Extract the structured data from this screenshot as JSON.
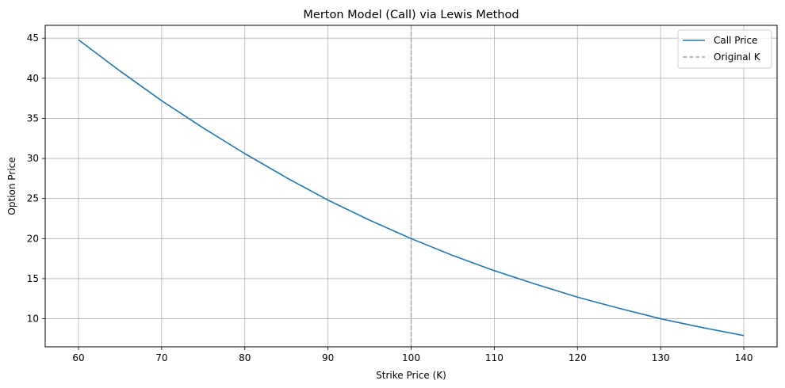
{
  "chart_data": {
    "type": "line",
    "title": "Merton Model (Call) via Lewis Method",
    "xlabel": "Strike Price (K)",
    "ylabel": "Option Price",
    "xlim": [
      56,
      144
    ],
    "ylim": [
      6.5,
      46.6
    ],
    "xticks": [
      60,
      70,
      80,
      90,
      100,
      110,
      120,
      130,
      140
    ],
    "yticks": [
      10,
      15,
      20,
      25,
      30,
      35,
      40,
      45
    ],
    "grid": true,
    "legend_position": "top-right",
    "series": [
      {
        "name": "Call Price",
        "color": "#1f77b4",
        "style": "solid",
        "x": [
          60,
          65,
          70,
          75,
          80,
          85,
          90,
          95,
          100,
          105,
          110,
          115,
          120,
          125,
          130,
          135,
          140
        ],
        "y": [
          44.8,
          40.9,
          37.2,
          33.8,
          30.6,
          27.6,
          24.8,
          22.3,
          20.0,
          17.9,
          16.0,
          14.3,
          12.7,
          11.3,
          10.0,
          8.9,
          7.9
        ]
      }
    ],
    "reference_lines": [
      {
        "name": "Original K",
        "orientation": "vertical",
        "x": 100,
        "color": "#a6a6a6",
        "style": "dashed"
      }
    ]
  }
}
